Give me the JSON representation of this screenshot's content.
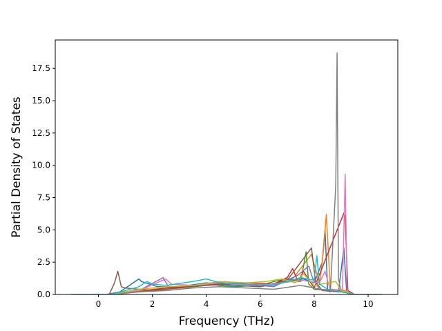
{
  "chart_data": {
    "type": "line",
    "title": "",
    "xlabel": "Frequency (THz)",
    "ylabel": "Partial Density of States",
    "xlim": [
      -1.6,
      11.1
    ],
    "ylim": [
      0,
      19.7
    ],
    "xticks": [
      0,
      2,
      4,
      6,
      8,
      10
    ],
    "xtick_labels": [
      "0",
      "2",
      "4",
      "6",
      "8",
      "10"
    ],
    "yticks": [
      0.0,
      2.5,
      5.0,
      7.5,
      10.0,
      12.5,
      15.0,
      17.5
    ],
    "ytick_labels": [
      "0.0",
      "2.5",
      "5.0",
      "7.5",
      "10.0",
      "12.5",
      "15.0",
      "17.5"
    ],
    "grid": false,
    "legend": "none",
    "colors": [
      "#1f77b4",
      "#ff7f0e",
      "#2ca02c",
      "#d62728",
      "#9467bd",
      "#8c564b",
      "#e377c2",
      "#7f7f7f",
      "#bcbd22",
      "#17becf"
    ],
    "series": [
      {
        "x": [
          -1.0,
          0.3,
          0.8,
          1.5,
          1.6,
          2.2,
          3.0,
          4.0,
          5.0,
          6.0,
          7.0,
          7.6,
          8.0,
          8.3,
          8.4,
          8.5,
          8.9,
          9.1,
          9.2,
          9.4,
          10.5
        ],
        "y": [
          0,
          0,
          0.2,
          1.2,
          1.0,
          0.6,
          0.6,
          0.9,
          0.7,
          0.6,
          1.0,
          1.2,
          0.9,
          2.5,
          5.0,
          0.3,
          0.2,
          3.6,
          0.3,
          0,
          0
        ]
      },
      {
        "x": [
          -1.0,
          0.4,
          1.0,
          2.0,
          3.0,
          4.0,
          4.7,
          5.5,
          6.5,
          7.2,
          7.9,
          8.2,
          8.35,
          8.45,
          8.6,
          9.2,
          9.4,
          10.5
        ],
        "y": [
          0,
          0,
          0.2,
          0.4,
          0.6,
          0.8,
          1.0,
          0.7,
          0.8,
          1.2,
          3.1,
          0.8,
          3.5,
          6.2,
          0.4,
          0.3,
          0,
          0
        ]
      },
      {
        "x": [
          -1.0,
          0.5,
          1.2,
          2.0,
          3.0,
          4.0,
          5.0,
          6.0,
          6.5,
          7.0,
          7.5,
          7.7,
          7.8,
          8.0,
          9.2,
          9.5,
          10.5
        ],
        "y": [
          0,
          0,
          0.2,
          0.3,
          0.5,
          0.8,
          0.6,
          0.7,
          1.0,
          1.2,
          1.0,
          3.3,
          0.8,
          0.4,
          0.2,
          0,
          0
        ]
      },
      {
        "x": [
          -1.0,
          0.5,
          1.5,
          2.5,
          3.5,
          4.5,
          5.5,
          6.5,
          7.0,
          7.2,
          7.4,
          7.6,
          8.0,
          9.1,
          9.15,
          9.25,
          9.5,
          10.5
        ],
        "y": [
          0,
          0,
          0.2,
          0.5,
          0.6,
          0.8,
          0.9,
          0.8,
          1.3,
          2.0,
          1.0,
          1.8,
          0.5,
          6.3,
          6.0,
          0.3,
          0,
          0
        ]
      },
      {
        "x": [
          -1.0,
          0.5,
          1.5,
          2.4,
          2.6,
          3.5,
          4.5,
          5.5,
          6.5,
          7.4,
          7.8,
          7.95,
          8.2,
          9.0,
          9.5,
          10.5
        ],
        "y": [
          0,
          0,
          0.3,
          1.3,
          0.6,
          0.7,
          0.9,
          0.8,
          0.6,
          1.5,
          2.2,
          1.2,
          0.4,
          0.3,
          0,
          0
        ]
      },
      {
        "x": [
          -1.0,
          0.4,
          0.6,
          0.72,
          0.85,
          1.0,
          2.0,
          3.0,
          4.0,
          5.0,
          6.0,
          7.0,
          7.9,
          8.05,
          8.3,
          9.0,
          9.5,
          10.5
        ],
        "y": [
          0,
          0,
          0.9,
          1.8,
          0.6,
          0.5,
          0.3,
          0.5,
          0.7,
          0.8,
          0.6,
          1.1,
          3.6,
          1.0,
          0.3,
          0.2,
          0,
          0
        ]
      },
      {
        "x": [
          -1.0,
          0.5,
          1.5,
          2.5,
          2.7,
          3.5,
          4.5,
          5.5,
          6.5,
          7.5,
          8.2,
          8.4,
          8.6,
          9.05,
          9.15,
          9.22,
          9.3,
          10.5
        ],
        "y": [
          0,
          0,
          0.3,
          1.2,
          0.8,
          0.7,
          0.9,
          0.7,
          0.8,
          1.1,
          0.9,
          1.8,
          0.3,
          0.4,
          9.3,
          0.4,
          0,
          0
        ]
      },
      {
        "x": [
          -1.0,
          0.5,
          1.5,
          2.5,
          3.5,
          4.5,
          5.5,
          6.5,
          7.5,
          8.0,
          8.6,
          8.8,
          8.85,
          8.9,
          9.0,
          9.5,
          10.5
        ],
        "y": [
          0,
          0,
          0.2,
          0.3,
          0.5,
          0.6,
          0.5,
          0.4,
          0.7,
          0.5,
          0.2,
          8.5,
          18.7,
          1.2,
          0.2,
          0,
          0
        ]
      },
      {
        "x": [
          -1.0,
          0.5,
          1.5,
          2.5,
          3.5,
          4.5,
          5.5,
          6.2,
          6.8,
          7.3,
          7.6,
          8.0,
          8.8,
          9.0,
          9.5,
          10.5
        ],
        "y": [
          0,
          0,
          0.4,
          0.6,
          0.7,
          1.0,
          0.9,
          1.0,
          1.2,
          0.9,
          1.6,
          0.7,
          1.0,
          0.3,
          0,
          0
        ]
      },
      {
        "x": [
          -1.0,
          0.5,
          1.5,
          1.8,
          2.0,
          2.5,
          3.5,
          4.0,
          4.5,
          5.5,
          6.5,
          7.5,
          8.0,
          8.1,
          8.2,
          8.5,
          9.0,
          9.5,
          10.5
        ],
        "y": [
          0,
          0,
          0.6,
          1.0,
          0.8,
          0.7,
          1.0,
          1.2,
          0.9,
          0.8,
          0.7,
          1.3,
          1.1,
          3.0,
          0.8,
          0.4,
          0.2,
          0,
          0
        ]
      }
    ]
  }
}
